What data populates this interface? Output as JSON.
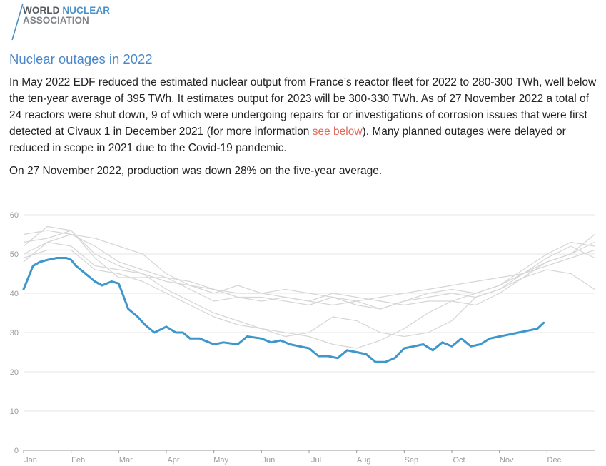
{
  "logo": {
    "line1_a": "WORLD",
    "line1_b": "NUCLEAR",
    "line2": "ASSOCIATION"
  },
  "article": {
    "title": "Nuclear outages in 2022",
    "para1_a": "In May 2022 EDF reduced the estimated nuclear output from France’s reactor fleet for 2022 to 280-300 TWh, well below the ten-year average of 395 TWh. It estimates output for 2023 will be 300-330 TWh. As of 27 November 2022 a total of 24 reactors were shut down, 9 of which were undergoing repairs for or investigations of corrosion issues that were first detected at Civaux 1 in December 2021 (for more information ",
    "link": "see below",
    "para1_b": "). Many planned outages were delayed or reduced in scope in 2021 due to the Covid-19 pandemic.",
    "para2": "On 27 November 2022, production was down 28% on the five-year average."
  },
  "chart_data": {
    "type": "line",
    "x_unit": "month of year (1 = start of Jan)",
    "categories": [
      "Jan",
      "Feb",
      "Mar",
      "Apr",
      "May",
      "Jun",
      "Jul",
      "Aug",
      "Sep",
      "Oct",
      "Nov",
      "Dec"
    ],
    "ylim": [
      0,
      60
    ],
    "xlim": [
      1,
      13
    ],
    "yticks": [
      0,
      10,
      20,
      30,
      40,
      50,
      60
    ],
    "grid": true,
    "colors": {
      "highlight": "#3d97cb",
      "history": "#d6d6d6",
      "grid": "#e6e6e6",
      "axis": "#999999",
      "tick": "#9a9a9a"
    },
    "highlight_series": {
      "x": [
        1.0,
        1.1,
        1.2,
        1.35,
        1.5,
        1.7,
        1.9,
        2.0,
        2.1,
        2.3,
        2.5,
        2.65,
        2.85,
        3.0,
        3.2,
        3.4,
        3.55,
        3.75,
        4.0,
        4.2,
        4.35,
        4.5,
        4.7,
        5.0,
        5.2,
        5.5,
        5.7,
        6.0,
        6.2,
        6.4,
        6.6,
        6.8,
        7.0,
        7.2,
        7.4,
        7.6,
        7.8,
        8.0,
        8.2,
        8.4,
        8.6,
        8.8,
        9.0,
        9.2,
        9.4,
        9.6,
        9.8,
        10.0,
        10.2,
        10.4,
        10.6,
        10.8,
        11.0,
        11.2,
        11.4,
        11.6,
        11.8,
        11.93
      ],
      "y": [
        41,
        44,
        47,
        48,
        48.5,
        49,
        49,
        48.5,
        47,
        45,
        43,
        42,
        43,
        42.5,
        36,
        34,
        32,
        30,
        31.5,
        30,
        30,
        28.5,
        28.5,
        27,
        27.5,
        27,
        29,
        28.5,
        27.5,
        28,
        27,
        26.5,
        26,
        24,
        24,
        23.5,
        25.5,
        25,
        24.5,
        22.5,
        22.5,
        23.5,
        26,
        26.5,
        27,
        25.5,
        27.5,
        26.5,
        28.5,
        26.5,
        27,
        28.5,
        29,
        29.5,
        30,
        30.5,
        31,
        32.5
      ]
    },
    "history_series": [
      {
        "x": [
          1.0,
          1.5,
          2.0,
          2.5,
          3.0,
          3.5,
          4.0,
          4.5,
          5.0,
          5.5,
          6.0,
          6.5,
          7.0,
          7.5,
          8.0,
          8.5,
          9.0,
          9.5,
          10.0,
          10.5,
          11.0,
          11.5,
          12.0,
          12.5,
          13.0
        ],
        "y": [
          55,
          56,
          55,
          52,
          48,
          46,
          44,
          43,
          41,
          39,
          39,
          38,
          37,
          39,
          37,
          36,
          38,
          39,
          40,
          39,
          41,
          44,
          48,
          50,
          55
        ]
      },
      {
        "x": [
          1.0,
          1.5,
          2.0,
          2.5,
          3.0,
          3.5,
          4.0,
          4.5,
          5.0,
          5.5,
          6.0,
          6.5,
          7.0,
          7.5,
          8.0,
          8.5,
          9.0,
          9.5,
          10.0,
          10.5,
          11.0,
          11.5,
          12.0,
          12.5,
          13.0
        ],
        "y": [
          50,
          53,
          55,
          54,
          52,
          50,
          45,
          42,
          40,
          42,
          40,
          39,
          38,
          37,
          38,
          36,
          38,
          40,
          41,
          40,
          42,
          46,
          50,
          53,
          52
        ]
      },
      {
        "x": [
          1.0,
          1.5,
          2.0,
          2.5,
          3.0,
          3.5,
          4.0,
          4.5,
          5.0,
          5.5,
          6.0,
          6.5,
          7.0,
          7.5,
          8.0,
          8.5,
          9.0,
          9.5,
          10.0,
          10.5,
          11.0,
          11.5,
          12.0,
          12.5,
          13.0
        ],
        "y": [
          52,
          57,
          56,
          50,
          47,
          45,
          43,
          42,
          41,
          40,
          40,
          41,
          40,
          39,
          38,
          39,
          40,
          41,
          42,
          43,
          44,
          45,
          47,
          49,
          51
        ]
      },
      {
        "x": [
          1.0,
          1.5,
          2.0,
          2.5,
          3.0,
          3.5,
          4.0,
          4.5,
          5.0,
          5.5,
          6.0,
          6.5,
          7.0,
          7.5,
          8.0,
          8.5,
          9.0,
          9.5,
          10.0,
          10.5,
          11.0,
          11.5,
          12.0,
          12.5,
          13.0
        ],
        "y": [
          53,
          54,
          56,
          49,
          44,
          44,
          44,
          41,
          38,
          39,
          38,
          39,
          38,
          40,
          39,
          38,
          37,
          38,
          38,
          37,
          40,
          44,
          46,
          45,
          41
        ]
      },
      {
        "x": [
          1.0,
          1.5,
          2.0,
          2.5,
          3.0,
          3.5,
          4.0,
          4.5,
          5.0,
          5.5,
          6.0,
          6.5,
          7.0,
          7.5,
          8.0,
          8.5,
          9.0,
          9.5,
          10.0,
          10.5,
          11.0,
          11.5,
          12.0,
          12.5,
          13.0
        ],
        "y": [
          48,
          53,
          52,
          47,
          46,
          45,
          41,
          38,
          35,
          33,
          31,
          29,
          30,
          34,
          33,
          30,
          29,
          30,
          33,
          39,
          41,
          45,
          49,
          52,
          49
        ]
      },
      {
        "x": [
          1.0,
          1.5,
          2.0,
          2.5,
          3.0,
          3.5,
          4.0,
          4.5,
          5.0,
          5.5,
          6.0,
          6.5,
          7.0,
          7.5,
          8.0,
          8.5,
          9.0,
          9.5,
          10.0,
          10.5,
          11.0,
          11.5,
          12.0,
          12.5,
          13.0
        ],
        "y": [
          49,
          51,
          51,
          46,
          45,
          43,
          40,
          37,
          34,
          32,
          31,
          30,
          29,
          27,
          26,
          28,
          31,
          35,
          38,
          40,
          42,
          45,
          48,
          50,
          53
        ]
      }
    ]
  }
}
